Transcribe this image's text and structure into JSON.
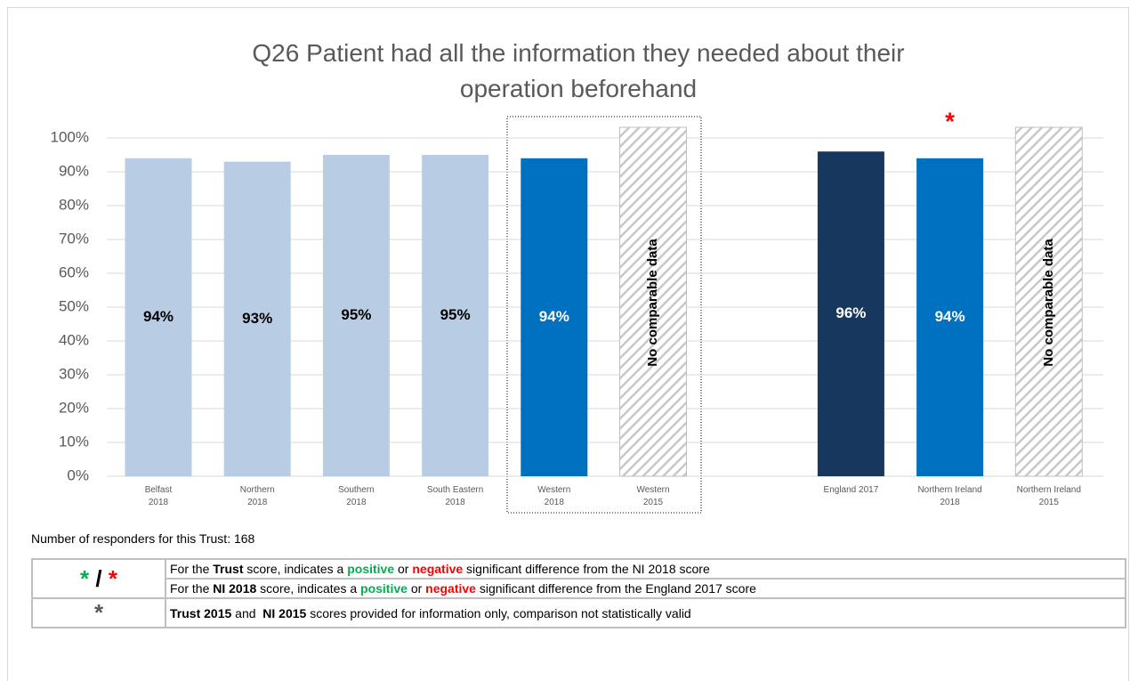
{
  "chart_data": {
    "type": "bar",
    "title": "Q26 Patient had all the information they needed about their operation beforehand",
    "categories": [
      "Belfast\n2018",
      "Northern\n2018",
      "Southern\n2018",
      "South Eastern\n2018",
      "Western\n2018",
      "Western\n2015",
      null,
      "England 2017",
      "Northern Ireland\n2018",
      "Northern Ireland\n2015"
    ],
    "values": [
      94,
      93,
      95,
      95,
      94,
      null,
      null,
      96,
      94,
      null
    ],
    "value_labels": [
      "94%",
      "93%",
      "95%",
      "95%",
      "94%",
      null,
      null,
      "96%",
      "94%",
      null
    ],
    "colors": [
      "#b8cce4",
      "#b8cce4",
      "#b8cce4",
      "#b8cce4",
      "#0070c0",
      null,
      null,
      "#17375e",
      "#0070c0",
      null
    ],
    "label_colors": [
      "#000000",
      "#000000",
      "#000000",
      "#000000",
      "#ffffff",
      null,
      null,
      "#ffffff",
      "#ffffff",
      null
    ],
    "no_data_label": "No comparable data",
    "markers": [
      null,
      null,
      null,
      null,
      null,
      null,
      null,
      null,
      "*",
      null
    ],
    "marker_color": "#ff0000",
    "ylim": [
      0,
      100
    ],
    "yticks": [
      {
        "value": 0,
        "label": "0%"
      },
      {
        "value": 10,
        "label": "10%"
      },
      {
        "value": 20,
        "label": "20%"
      },
      {
        "value": 30,
        "label": "30%"
      },
      {
        "value": 40,
        "label": "40%"
      },
      {
        "value": 50,
        "label": "50%"
      },
      {
        "value": 60,
        "label": "60%"
      },
      {
        "value": 70,
        "label": "70%"
      },
      {
        "value": 80,
        "label": "80%"
      },
      {
        "value": 90,
        "label": "90%"
      },
      {
        "value": 100,
        "label": "100%"
      }
    ],
    "grid": true
  },
  "note": "Number of responders for this Trust: 168",
  "legend_table": {
    "rows": [
      {
        "symbol": [
          {
            "text": "*",
            "color": "#00b050"
          },
          {
            "text": " / "
          },
          {
            "text": "*",
            "color": "#ff0000"
          }
        ],
        "lines": [
          [
            {
              "text": "For the "
            },
            {
              "text": "Trust",
              "bold": true
            },
            {
              "text": " score, indicates a "
            },
            {
              "text": "positive",
              "bold": true,
              "color": "#00b050"
            },
            {
              "text": " or "
            },
            {
              "text": "negative",
              "bold": true,
              "color": "#ff0000"
            },
            {
              "text": " significant difference from the NI 2018 score"
            }
          ],
          [
            {
              "text": "For the "
            },
            {
              "text": "NI 2018",
              "bold": true
            },
            {
              "text": " score, indicates a "
            },
            {
              "text": "positive",
              "bold": true,
              "color": "#00b050"
            },
            {
              "text": " or "
            },
            {
              "text": "negative",
              "bold": true,
              "color": "#ff0000"
            },
            {
              "text": " significant difference from the England 2017 score"
            }
          ]
        ]
      },
      {
        "symbol": [
          {
            "text": "*",
            "color": "#595959"
          }
        ],
        "lines": [
          [
            {
              "text": "Trust 2015",
              "bold": true
            },
            {
              "text": " and  "
            },
            {
              "text": "NI 2015",
              "bold": true
            },
            {
              "text": " scores provided for information only, comparison not statistically valid"
            }
          ]
        ]
      }
    ]
  }
}
